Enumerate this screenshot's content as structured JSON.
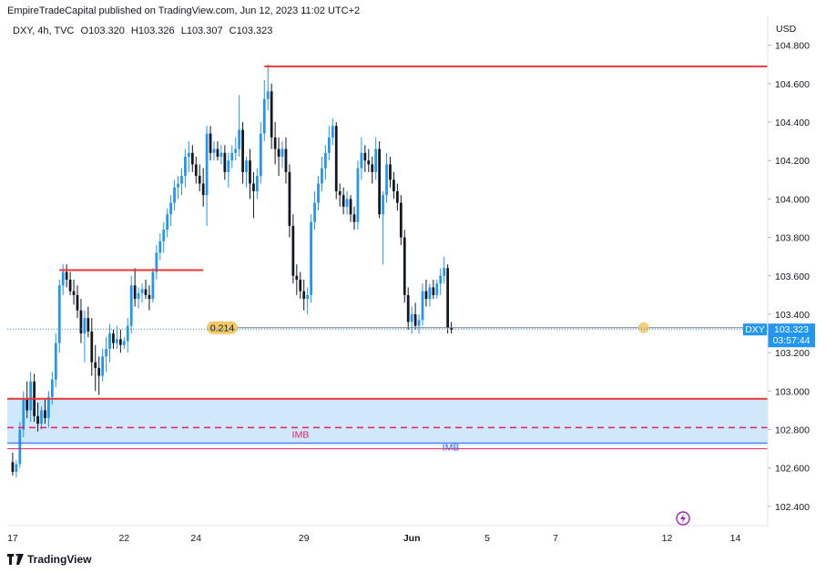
{
  "header": {
    "published": "EmpireTradeCapital published on TradingView.com, Jun 12, 2023 11:02 UTC+2"
  },
  "legend": {
    "symbol": "DXY, 4h, TVC",
    "open": "O103.320",
    "high": "H103.326",
    "low": "L103.307",
    "close": "C103.323"
  },
  "footer": {
    "brand": "TradingView"
  },
  "colors": {
    "bull": "#2196f3",
    "bear": "#131722",
    "level": "#e53935",
    "zone": "#cfe8fb",
    "imb_red": "#e91e63",
    "imb_blue": "#2962ff",
    "fib": "#f3c96a",
    "price_tag": "#2196f3"
  },
  "chart_data": {
    "type": "candlestick",
    "symbol": "DXY",
    "interval": "4h",
    "currency_label": "USD",
    "ylim": [
      102.3,
      104.95
    ],
    "yticks": [
      "104.800",
      "104.600",
      "104.400",
      "104.200",
      "104.000",
      "103.800",
      "103.600",
      "103.400",
      "103.200",
      "103.000",
      "102.800",
      "102.600",
      "102.400"
    ],
    "xticks": [
      {
        "label": "17",
        "bar": 0
      },
      {
        "label": "22",
        "bar": 31
      },
      {
        "label": "24",
        "bar": 51
      },
      {
        "label": "29",
        "bar": 81
      },
      {
        "label": "Jun",
        "bar": 111
      },
      {
        "label": "5",
        "bar": 132
      },
      {
        "label": "7",
        "bar": 151
      },
      {
        "label": "12",
        "bar": 182
      },
      {
        "label": "14",
        "bar": 201
      }
    ],
    "xlim_bars": [
      -1.5,
      210
    ],
    "candles": [
      [
        102.63,
        102.68,
        102.56,
        102.58
      ],
      [
        102.58,
        102.64,
        102.55,
        102.62
      ],
      [
        102.62,
        102.84,
        102.6,
        102.8
      ],
      [
        102.8,
        103.0,
        102.76,
        102.96
      ],
      [
        102.96,
        103.05,
        102.86,
        102.9
      ],
      [
        102.9,
        103.1,
        102.84,
        103.05
      ],
      [
        103.05,
        103.09,
        102.84,
        102.87
      ],
      [
        102.87,
        102.94,
        102.79,
        102.83
      ],
      [
        102.83,
        102.92,
        102.8,
        102.9
      ],
      [
        102.9,
        102.96,
        102.83,
        102.86
      ],
      [
        102.86,
        103.0,
        102.81,
        102.97
      ],
      [
        102.97,
        103.1,
        102.93,
        103.06
      ],
      [
        103.06,
        103.3,
        103.02,
        103.25
      ],
      [
        103.25,
        103.58,
        103.2,
        103.55
      ],
      [
        103.55,
        103.66,
        103.5,
        103.62
      ],
      [
        103.62,
        103.66,
        103.54,
        103.58
      ],
      [
        103.58,
        103.62,
        103.5,
        103.52
      ],
      [
        103.52,
        103.58,
        103.45,
        103.5
      ],
      [
        103.5,
        103.55,
        103.38,
        103.42
      ],
      [
        103.42,
        103.48,
        103.25,
        103.3
      ],
      [
        103.3,
        103.42,
        103.15,
        103.38
      ],
      [
        103.38,
        103.44,
        103.28,
        103.31
      ],
      [
        103.31,
        103.38,
        103.08,
        103.15
      ],
      [
        103.15,
        103.24,
        103.0,
        103.12
      ],
      [
        103.12,
        103.18,
        102.98,
        103.08
      ],
      [
        103.08,
        103.22,
        103.05,
        103.18
      ],
      [
        103.18,
        103.28,
        103.1,
        103.22
      ],
      [
        103.22,
        103.35,
        103.15,
        103.3
      ],
      [
        103.3,
        103.32,
        103.22,
        103.25
      ],
      [
        103.25,
        103.34,
        103.22,
        103.27
      ],
      [
        103.27,
        103.32,
        103.2,
        103.24
      ],
      [
        103.24,
        103.28,
        103.22,
        103.26
      ],
      [
        103.26,
        103.38,
        103.2,
        103.34
      ],
      [
        103.34,
        103.6,
        103.3,
        103.55
      ],
      [
        103.55,
        103.64,
        103.44,
        103.48
      ],
      [
        103.48,
        103.54,
        103.43,
        103.51
      ],
      [
        103.51,
        103.56,
        103.46,
        103.53
      ],
      [
        103.53,
        103.58,
        103.48,
        103.5
      ],
      [
        103.5,
        103.55,
        103.42,
        103.48
      ],
      [
        103.48,
        103.64,
        103.46,
        103.62
      ],
      [
        103.62,
        103.76,
        103.58,
        103.72
      ],
      [
        103.72,
        103.82,
        103.68,
        103.78
      ],
      [
        103.78,
        103.88,
        103.72,
        103.84
      ],
      [
        103.84,
        103.95,
        103.8,
        103.92
      ],
      [
        103.92,
        104.02,
        103.86,
        103.98
      ],
      [
        103.98,
        104.1,
        103.94,
        104.06
      ],
      [
        104.06,
        104.12,
        104.0,
        104.08
      ],
      [
        104.08,
        104.16,
        104.02,
        104.12
      ],
      [
        104.12,
        104.26,
        104.06,
        104.22
      ],
      [
        104.22,
        104.3,
        104.14,
        104.24
      ],
      [
        104.24,
        104.28,
        104.14,
        104.18
      ],
      [
        104.18,
        104.22,
        104.08,
        104.12
      ],
      [
        104.12,
        104.18,
        104.04,
        104.08
      ],
      [
        104.08,
        104.16,
        103.96,
        104.02
      ],
      [
        104.02,
        104.38,
        103.86,
        104.34
      ],
      [
        104.34,
        104.38,
        104.2,
        104.24
      ],
      [
        104.24,
        104.3,
        104.2,
        104.26
      ],
      [
        104.26,
        104.3,
        104.2,
        104.22
      ],
      [
        104.22,
        104.28,
        104.18,
        104.24
      ],
      [
        104.24,
        104.28,
        104.1,
        104.14
      ],
      [
        104.14,
        104.24,
        104.06,
        104.2
      ],
      [
        104.2,
        104.28,
        104.16,
        104.24
      ],
      [
        104.24,
        104.32,
        104.2,
        104.26
      ],
      [
        104.26,
        104.54,
        104.22,
        104.36
      ],
      [
        104.36,
        104.4,
        104.08,
        104.14
      ],
      [
        104.14,
        104.22,
        104.06,
        104.2
      ],
      [
        104.2,
        104.26,
        104.0,
        104.08
      ],
      [
        104.08,
        104.14,
        103.9,
        104.04
      ],
      [
        104.04,
        104.16,
        104.0,
        104.12
      ],
      [
        104.12,
        104.4,
        104.08,
        104.34
      ],
      [
        104.34,
        104.62,
        104.3,
        104.52
      ],
      [
        104.52,
        104.7,
        104.46,
        104.56
      ],
      [
        104.56,
        104.6,
        104.26,
        104.32
      ],
      [
        104.32,
        104.4,
        104.18,
        104.26
      ],
      [
        104.26,
        104.32,
        104.12,
        104.22
      ],
      [
        104.22,
        104.3,
        104.16,
        104.26
      ],
      [
        104.26,
        104.32,
        104.08,
        104.14
      ],
      [
        104.14,
        104.18,
        103.8,
        103.86
      ],
      [
        103.86,
        103.92,
        103.56,
        103.6
      ],
      [
        103.6,
        103.66,
        103.5,
        103.58
      ],
      [
        103.58,
        103.62,
        103.48,
        103.52
      ],
      [
        103.52,
        103.58,
        103.42,
        103.48
      ],
      [
        103.48,
        103.54,
        103.4,
        103.5
      ],
      [
        103.5,
        103.92,
        103.46,
        103.88
      ],
      [
        103.88,
        104.04,
        103.84,
        103.98
      ],
      [
        103.98,
        104.12,
        103.94,
        104.08
      ],
      [
        104.08,
        104.22,
        104.04,
        104.16
      ],
      [
        104.16,
        104.28,
        104.1,
        104.24
      ],
      [
        104.24,
        104.38,
        104.2,
        104.32
      ],
      [
        104.32,
        104.42,
        104.28,
        104.38
      ],
      [
        104.38,
        104.4,
        104.0,
        104.04
      ],
      [
        104.04,
        104.08,
        103.96,
        104.02
      ],
      [
        104.02,
        104.06,
        103.92,
        103.96
      ],
      [
        103.96,
        104.04,
        103.92,
        104.0
      ],
      [
        104.0,
        104.02,
        103.88,
        103.92
      ],
      [
        103.92,
        103.96,
        103.84,
        103.88
      ],
      [
        103.88,
        104.2,
        103.84,
        104.16
      ],
      [
        104.16,
        104.32,
        104.1,
        104.24
      ],
      [
        104.24,
        104.28,
        104.14,
        104.2
      ],
      [
        104.2,
        104.26,
        104.14,
        104.18
      ],
      [
        104.18,
        104.22,
        104.08,
        104.14
      ],
      [
        104.14,
        104.32,
        104.1,
        104.26
      ],
      [
        104.26,
        104.3,
        103.9,
        103.92
      ],
      [
        103.92,
        104.04,
        103.66,
        104.02
      ],
      [
        104.02,
        104.24,
        103.98,
        104.18
      ],
      [
        104.18,
        104.22,
        104.06,
        104.1
      ],
      [
        104.1,
        104.14,
        104.0,
        104.04
      ],
      [
        104.04,
        104.08,
        103.94,
        103.98
      ],
      [
        103.98,
        104.02,
        103.76,
        103.8
      ],
      [
        103.8,
        103.84,
        103.46,
        103.5
      ],
      [
        103.5,
        103.54,
        103.32,
        103.36
      ],
      [
        103.36,
        103.44,
        103.3,
        103.4
      ],
      [
        103.4,
        103.46,
        103.32,
        103.34
      ],
      [
        103.34,
        103.4,
        103.3,
        103.37
      ],
      [
        103.37,
        103.56,
        103.34,
        103.52
      ],
      [
        103.52,
        103.58,
        103.44,
        103.48
      ],
      [
        103.48,
        103.56,
        103.44,
        103.54
      ],
      [
        103.54,
        103.58,
        103.48,
        103.5
      ],
      [
        103.5,
        103.58,
        103.48,
        103.56
      ],
      [
        103.56,
        103.64,
        103.5,
        103.6
      ],
      [
        103.6,
        103.7,
        103.56,
        103.64
      ],
      [
        103.64,
        103.66,
        103.3,
        103.33
      ],
      [
        103.33,
        103.36,
        103.3,
        103.32
      ]
    ],
    "levels": [
      {
        "name": "top-resistance",
        "price": 104.69,
        "from_bar": 70,
        "color": "level"
      },
      {
        "name": "mid-resistance",
        "price": 103.63,
        "from_bar": 13,
        "to_bar": 53,
        "color": "level"
      },
      {
        "name": "support",
        "price": 102.96,
        "from_bar": -1.5,
        "color": "level"
      }
    ],
    "zone": {
      "top": 102.96,
      "bottom": 102.72
    },
    "imb_lines": [
      {
        "label": "IMB",
        "price": 102.81,
        "style": "dashed",
        "color": "imb_red"
      },
      {
        "label": "IMB",
        "price": 102.73,
        "style": "solid",
        "color": "imb_blue"
      },
      {
        "label": "",
        "price": 102.7,
        "style": "solid",
        "color": "imb_red"
      }
    ],
    "fib": {
      "label": "0.214",
      "price": 103.33,
      "from_bar": 55
    },
    "last_price": {
      "symbol": "DXY",
      "price": "103.323",
      "countdown": "03:57:44",
      "value": 103.323
    }
  }
}
